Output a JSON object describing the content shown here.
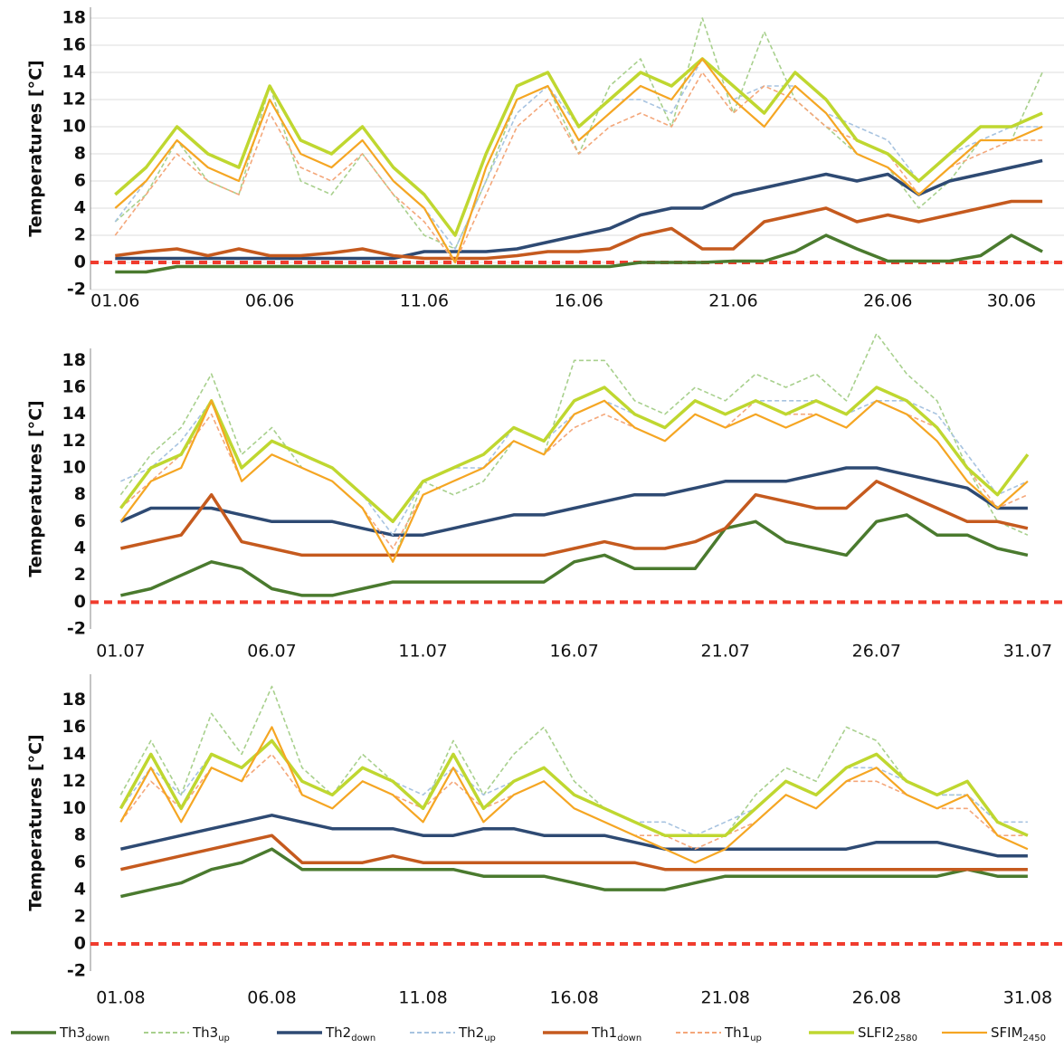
{
  "legend": [
    {
      "name": "Th3",
      "sub": "down",
      "color": "#4a7a2e",
      "dashed": false,
      "width": 3.5
    },
    {
      "name": "Th3",
      "sub": "up",
      "color": "#a8d08d",
      "dashed": true,
      "width": 1.6
    },
    {
      "name": "Th2",
      "sub": "down",
      "color": "#2e4a73",
      "dashed": false,
      "width": 3.5
    },
    {
      "name": "Th2",
      "sub": "up",
      "color": "#a7c3e0",
      "dashed": true,
      "width": 1.6
    },
    {
      "name": "Th1",
      "sub": "down",
      "color": "#c55a1e",
      "dashed": false,
      "width": 3.5
    },
    {
      "name": "Th1",
      "sub": "up",
      "color": "#f4a77a",
      "dashed": true,
      "width": 1.6
    },
    {
      "name": "SLFI2",
      "sub": "2580",
      "color": "#bfd730",
      "dashed": false,
      "width": 3.5
    },
    {
      "name": "SFIM",
      "sub": "2450",
      "color": "#f5a623",
      "dashed": false,
      "width": 2.2
    }
  ],
  "chart_data": [
    {
      "type": "line",
      "ylabel": "Temperatures [°C]",
      "ylim": [
        -2,
        18.8
      ],
      "xlim": [
        0.2,
        31.7
      ],
      "grid": true,
      "hline": 0,
      "yticks": [
        -2,
        0,
        2,
        4,
        6,
        8,
        10,
        12,
        14,
        16,
        18
      ],
      "xticks": [
        {
          "value": 1,
          "label": "01.06"
        },
        {
          "value": 6,
          "label": "06.06"
        },
        {
          "value": 11,
          "label": "11.06"
        },
        {
          "value": 16,
          "label": "16.06"
        },
        {
          "value": 21,
          "label": "21.06"
        },
        {
          "value": 26,
          "label": "26.06"
        },
        {
          "value": 30,
          "label": "30.06"
        }
      ],
      "x": [
        1,
        2,
        3,
        4,
        5,
        6,
        7,
        8,
        9,
        10,
        11,
        12,
        13,
        14,
        15,
        16,
        17,
        18,
        19,
        20,
        21,
        22,
        23,
        24,
        25,
        26,
        27,
        28,
        29,
        30,
        31
      ],
      "series": [
        {
          "values": [
            -0.7,
            -0.7,
            -0.3,
            -0.3,
            -0.3,
            -0.3,
            -0.3,
            -0.3,
            -0.3,
            -0.3,
            -0.3,
            -0.3,
            -0.3,
            -0.3,
            -0.3,
            -0.3,
            -0.3,
            0,
            0,
            0,
            0.1,
            0.1,
            0.8,
            2,
            1,
            0.1,
            0.1,
            0.1,
            0.5,
            2,
            0.8
          ]
        },
        {
          "values": [
            3,
            5,
            9,
            6,
            5,
            13,
            6,
            5,
            8,
            5,
            2,
            1,
            6,
            12,
            13,
            8,
            13,
            15,
            10,
            18,
            11,
            17,
            12,
            10,
            8,
            7,
            4,
            6,
            9,
            9,
            14
          ]
        },
        {
          "values": [
            0.3,
            0.3,
            0.3,
            0.3,
            0.3,
            0.3,
            0.3,
            0.3,
            0.3,
            0.3,
            0.8,
            0.8,
            0.8,
            1,
            1.5,
            2,
            2.5,
            3.5,
            4,
            4,
            5,
            5.5,
            6,
            6.5,
            6,
            6.5,
            5,
            6,
            6.5,
            7,
            7.5
          ]
        },
        {
          "values": [
            3,
            6,
            9,
            7,
            6,
            12,
            8,
            7,
            9,
            6,
            4,
            1,
            6,
            11,
            13,
            10,
            12,
            12,
            11,
            15,
            12,
            13,
            13,
            11,
            10,
            9,
            6,
            8,
            9,
            10,
            10
          ]
        },
        {
          "values": [
            0.5,
            0.8,
            1,
            0.5,
            1,
            0.5,
            0.5,
            0.7,
            1,
            0.5,
            0.3,
            0.3,
            0.3,
            0.5,
            0.8,
            0.8,
            1,
            2,
            2.5,
            1,
            1,
            3,
            3.5,
            4,
            3,
            3.5,
            3,
            3.5,
            4,
            4.5,
            4.5
          ]
        },
        {
          "values": [
            2,
            5,
            8,
            6,
            5,
            11,
            7,
            6,
            8,
            5,
            3,
            0,
            5,
            10,
            12,
            8,
            10,
            11,
            10,
            14,
            11,
            13,
            12,
            10,
            9,
            8,
            5,
            7,
            8,
            9,
            9
          ]
        },
        {
          "values": [
            5,
            7,
            10,
            8,
            7,
            13,
            9,
            8,
            10,
            7,
            5,
            2,
            8,
            13,
            14,
            10,
            12,
            14,
            13,
            15,
            13,
            11,
            14,
            12,
            9,
            8,
            6,
            8,
            10,
            10,
            11
          ]
        },
        {
          "values": [
            4,
            6,
            9,
            7,
            6,
            12,
            8,
            7,
            9,
            6,
            4,
            0,
            7,
            12,
            13,
            9,
            11,
            13,
            12,
            15,
            12,
            10,
            13,
            11,
            8,
            7,
            5,
            7,
            9,
            9,
            10
          ]
        }
      ]
    },
    {
      "type": "line",
      "ylabel": "Temperatures [°C]",
      "ylim": [
        -2,
        18.9
      ],
      "xlim": [
        0,
        32.2
      ],
      "grid": false,
      "hline": 0,
      "yticks": [
        -2,
        0,
        2,
        4,
        6,
        8,
        10,
        12,
        14,
        16,
        18
      ],
      "xticks": [
        {
          "value": 1,
          "label": "01.07"
        },
        {
          "value": 6,
          "label": "06.07"
        },
        {
          "value": 11,
          "label": "11.07"
        },
        {
          "value": 16,
          "label": "16.07"
        },
        {
          "value": 21,
          "label": "21.07"
        },
        {
          "value": 26,
          "label": "26.07"
        },
        {
          "value": 31,
          "label": "31.07"
        }
      ],
      "x": [
        1,
        2,
        3,
        4,
        5,
        6,
        7,
        8,
        9,
        10,
        11,
        12,
        13,
        14,
        15,
        16,
        17,
        18,
        19,
        20,
        21,
        22,
        23,
        24,
        25,
        26,
        27,
        28,
        29,
        30,
        31
      ],
      "series": [
        {
          "values": [
            0.5,
            1,
            2,
            3,
            2.5,
            1,
            0.5,
            0.5,
            1,
            1.5,
            1.5,
            1.5,
            1.5,
            1.5,
            1.5,
            3,
            3.5,
            2.5,
            2.5,
            2.5,
            5.5,
            6,
            4.5,
            4,
            3.5,
            6,
            6.5,
            5,
            5,
            4,
            3.5
          ]
        },
        {
          "values": [
            8,
            11,
            13,
            17,
            11,
            13,
            10,
            9,
            7,
            3,
            9,
            8,
            9,
            12,
            11,
            18,
            18,
            15,
            14,
            16,
            15,
            17,
            16,
            17,
            15,
            20,
            17,
            15,
            10,
            6,
            5
          ]
        },
        {
          "values": [
            6,
            7,
            7,
            7,
            6.5,
            6,
            6,
            6,
            5.5,
            5,
            5,
            5.5,
            6,
            6.5,
            6.5,
            7,
            7.5,
            8,
            8,
            8.5,
            9,
            9,
            9,
            9.5,
            10,
            10,
            9.5,
            9,
            8.5,
            7,
            7
          ]
        },
        {
          "values": [
            9,
            10,
            12,
            15,
            10,
            12,
            11,
            10,
            8,
            5,
            9,
            10,
            10,
            13,
            12,
            14,
            15,
            14,
            13,
            15,
            14,
            15,
            15,
            15,
            14,
            15,
            15,
            14,
            11,
            8,
            9
          ]
        },
        {
          "values": [
            4,
            4.5,
            5,
            8,
            4.5,
            4,
            3.5,
            3.5,
            3.5,
            3.5,
            3.5,
            3.5,
            3.5,
            3.5,
            3.5,
            4,
            4.5,
            4,
            4,
            4.5,
            5.5,
            8,
            7.5,
            7,
            7,
            9,
            8,
            7,
            6,
            6,
            5.5
          ]
        },
        {
          "values": [
            7,
            9,
            11,
            14,
            9,
            11,
            10,
            9,
            7,
            4,
            8,
            9,
            10,
            12,
            11,
            13,
            14,
            13,
            12,
            14,
            13,
            15,
            14,
            14,
            13,
            15,
            14,
            13,
            10,
            7,
            8
          ]
        },
        {
          "values": [
            7,
            10,
            11,
            15,
            10,
            12,
            11,
            10,
            8,
            6,
            9,
            10,
            11,
            13,
            12,
            15,
            16,
            14,
            13,
            15,
            14,
            15,
            14,
            15,
            14,
            16,
            15,
            13,
            10,
            8,
            11
          ]
        },
        {
          "values": [
            6,
            9,
            10,
            15,
            9,
            11,
            10,
            9,
            7,
            3,
            8,
            9,
            10,
            12,
            11,
            14,
            15,
            13,
            12,
            14,
            13,
            14,
            13,
            14,
            13,
            15,
            14,
            12,
            9,
            7,
            9
          ]
        }
      ]
    },
    {
      "type": "line",
      "ylabel": "Temperatures [°C]",
      "ylim": [
        -2,
        19.9
      ],
      "xlim": [
        0,
        32.2
      ],
      "grid": false,
      "hline": 0,
      "yticks": [
        -2,
        0,
        2,
        4,
        6,
        8,
        10,
        12,
        14,
        16,
        18
      ],
      "xticks": [
        {
          "value": 1,
          "label": "01.08"
        },
        {
          "value": 6,
          "label": "06.08"
        },
        {
          "value": 11,
          "label": "11.08"
        },
        {
          "value": 16,
          "label": "16.08"
        },
        {
          "value": 21,
          "label": "21.08"
        },
        {
          "value": 26,
          "label": "26.08"
        },
        {
          "value": 31,
          "label": "31.08"
        }
      ],
      "x": [
        1,
        2,
        3,
        4,
        5,
        6,
        7,
        8,
        9,
        10,
        11,
        12,
        13,
        14,
        15,
        16,
        17,
        18,
        19,
        20,
        21,
        22,
        23,
        24,
        25,
        26,
        27,
        28,
        29,
        30,
        31
      ],
      "series": [
        {
          "values": [
            3.5,
            4,
            4.5,
            5.5,
            6,
            7,
            5.5,
            5.5,
            5.5,
            5.5,
            5.5,
            5.5,
            5,
            5,
            5,
            4.5,
            4,
            4,
            4,
            4.5,
            5,
            5,
            5,
            5,
            5,
            5,
            5,
            5,
            5.5,
            5,
            5
          ]
        },
        {
          "values": [
            11,
            15,
            11,
            17,
            14,
            19,
            13,
            11,
            14,
            12,
            10,
            15,
            11,
            14,
            16,
            12,
            10,
            9,
            8,
            8,
            8,
            11,
            13,
            12,
            16,
            15,
            12,
            11,
            11,
            9,
            8
          ]
        },
        {
          "values": [
            7,
            7.5,
            8,
            8.5,
            9,
            9.5,
            9,
            8.5,
            8.5,
            8.5,
            8,
            8,
            8.5,
            8.5,
            8,
            8,
            8,
            7.5,
            7,
            7,
            7,
            7,
            7,
            7,
            7,
            7.5,
            7.5,
            7.5,
            7,
            6.5,
            6.5
          ]
        },
        {
          "values": [
            10,
            13,
            11,
            14,
            13,
            15,
            12,
            11,
            13,
            12,
            11,
            13,
            11,
            12,
            13,
            11,
            10,
            9,
            9,
            8,
            9,
            10,
            12,
            11,
            13,
            13,
            12,
            11,
            11,
            9,
            9
          ]
        },
        {
          "values": [
            5.5,
            6,
            6.5,
            7,
            7.5,
            8,
            6,
            6,
            6,
            6.5,
            6,
            6,
            6,
            6,
            6,
            6,
            6,
            6,
            5.5,
            5.5,
            5.5,
            5.5,
            5.5,
            5.5,
            5.5,
            5.5,
            5.5,
            5.5,
            5.5,
            5.5,
            5.5
          ]
        },
        {
          "values": [
            9,
            12,
            10,
            13,
            12,
            14,
            11,
            10,
            12,
            11,
            10,
            12,
            10,
            11,
            12,
            10,
            9,
            8,
            8,
            7,
            8,
            9,
            11,
            10,
            12,
            12,
            11,
            10,
            10,
            8,
            8
          ]
        },
        {
          "values": [
            10,
            14,
            10,
            14,
            13,
            15,
            12,
            11,
            13,
            12,
            10,
            14,
            10,
            12,
            13,
            11,
            10,
            9,
            8,
            8,
            8,
            10,
            12,
            11,
            13,
            14,
            12,
            11,
            12,
            9,
            8
          ]
        },
        {
          "values": [
            9,
            13,
            9,
            13,
            12,
            16,
            11,
            10,
            12,
            11,
            9,
            13,
            9,
            11,
            12,
            10,
            9,
            8,
            7,
            6,
            7,
            9,
            11,
            10,
            12,
            13,
            11,
            10,
            11,
            8,
            7
          ]
        }
      ]
    }
  ]
}
